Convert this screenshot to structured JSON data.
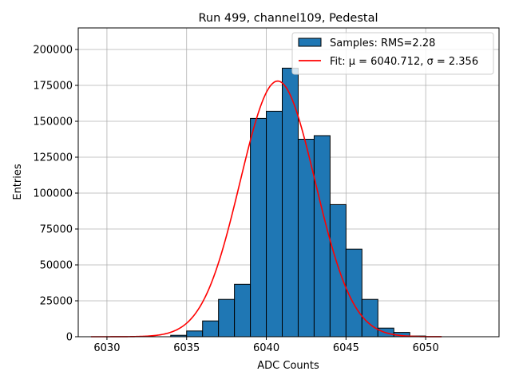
{
  "chart_data": {
    "type": "bar",
    "title": "Run 499, channel109, Pedestal",
    "xlabel": "ADC Counts",
    "ylabel": "Entries",
    "xlim": [
      6028.2,
      6054.6
    ],
    "ylim": [
      0,
      215000
    ],
    "x_ticks": [
      6030,
      6035,
      6040,
      6045,
      6050
    ],
    "y_ticks": [
      0,
      25000,
      50000,
      75000,
      100000,
      125000,
      150000,
      175000,
      200000
    ],
    "grid": true,
    "legend_position": "top-right",
    "series": [
      {
        "name": "Samples: RMS=2.28",
        "kind": "histogram",
        "color": "#1f77b4",
        "edgecolor": "#000000",
        "bin_width": 1,
        "bins": [
          {
            "x0": 6034,
            "value": 1000
          },
          {
            "x0": 6035,
            "value": 4000
          },
          {
            "x0": 6036,
            "value": 11000
          },
          {
            "x0": 6037,
            "value": 26000
          },
          {
            "x0": 6038,
            "value": 36500
          },
          {
            "x0": 6039,
            "value": 152000
          },
          {
            "x0": 6040,
            "value": 157000
          },
          {
            "x0": 6041,
            "value": 187000
          },
          {
            "x0": 6042,
            "value": 137500
          },
          {
            "x0": 6043,
            "value": 140000
          },
          {
            "x0": 6044,
            "value": 92000
          },
          {
            "x0": 6045,
            "value": 61000
          },
          {
            "x0": 6046,
            "value": 26000
          },
          {
            "x0": 6047,
            "value": 6000
          },
          {
            "x0": 6048,
            "value": 3000
          },
          {
            "x0": 6049,
            "value": 500
          }
        ]
      },
      {
        "name": "Fit: μ = 6040.712, σ = 2.356",
        "kind": "gaussian",
        "color": "#ff0000",
        "mu": 6040.712,
        "sigma": 2.356,
        "amplitude": 178000,
        "x_range": [
          6029,
          6051
        ]
      }
    ]
  }
}
